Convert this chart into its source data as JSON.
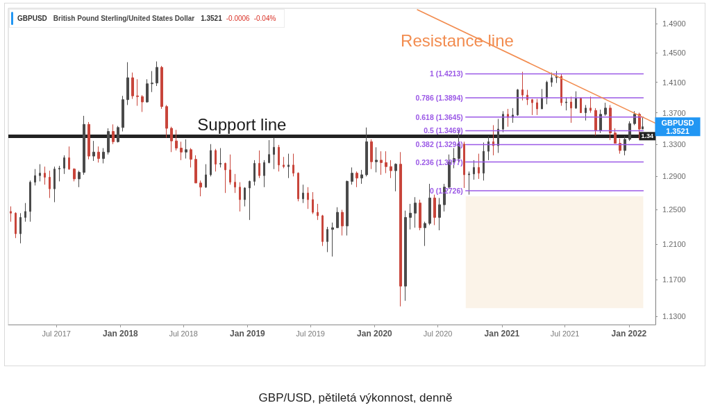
{
  "chart_data": {
    "type": "candlestick",
    "title": "GBPUSD",
    "subtitle": "British Pound Sterling/United States Dollar",
    "annotations": [
      "1.3521",
      "-0.0006",
      "-0.04%",
      {
        "text": "Support line",
        "x": "2018-12-16",
        "y": 1.34
      },
      "GBPUSD\n1.3521",
      "GBP/USD, pětiletá výkonnost, denně"
    ],
    "x": [
      "2017-02-20",
      "2017-03-06",
      "2017-03-20",
      "2017-04-03",
      "2017-04-17",
      "2017-05-01",
      "2017-05-15",
      "2017-05-29",
      "2017-06-12",
      "2017-06-26",
      "2017-07-10",
      "2017-07-24",
      "2017-08-07",
      "2017-08-21",
      "2017-09-04",
      "2017-09-18",
      "2017-10-02",
      "2017-10-16",
      "2017-10-30",
      "2017-11-13",
      "2017-11-27",
      "2017-12-11",
      "2017-12-25",
      "2018-01-08",
      "2018-01-22",
      "2018-02-05",
      "2018-02-19",
      "2018-03-05",
      "2018-03-19",
      "2018-04-02",
      "2018-04-16",
      "2018-04-30",
      "2018-05-14",
      "2018-05-28",
      "2018-06-11",
      "2018-06-25",
      "2018-07-09",
      "2018-07-23",
      "2018-08-06",
      "2018-08-20",
      "2018-09-03",
      "2018-09-17",
      "2018-10-01",
      "2018-10-15",
      "2018-10-29",
      "2018-11-12",
      "2018-11-26",
      "2018-12-10",
      "2018-12-24",
      "2019-01-07",
      "2019-01-21",
      "2019-02-04",
      "2019-02-18",
      "2019-03-04",
      "2019-03-18",
      "2019-04-01",
      "2019-04-15",
      "2019-04-29",
      "2019-05-13",
      "2019-05-27",
      "2019-06-10",
      "2019-06-24",
      "2019-07-08",
      "2019-07-22",
      "2019-08-05",
      "2019-08-19",
      "2019-09-02",
      "2019-09-16",
      "2019-09-30",
      "2019-10-14",
      "2019-10-28",
      "2019-11-11",
      "2019-11-25",
      "2019-12-09",
      "2019-12-23",
      "2020-01-06",
      "2020-01-20",
      "2020-02-03",
      "2020-02-17",
      "2020-03-02",
      "2020-03-16",
      "2020-03-30",
      "2020-04-13",
      "2020-04-27",
      "2020-05-11",
      "2020-05-25",
      "2020-06-08",
      "2020-06-22",
      "2020-07-06",
      "2020-07-20",
      "2020-08-03",
      "2020-08-17",
      "2020-08-31",
      "2020-09-14",
      "2020-09-28",
      "2020-10-12",
      "2020-10-26",
      "2020-11-09",
      "2020-11-23",
      "2020-12-07",
      "2020-12-21",
      "2021-01-04",
      "2021-01-18",
      "2021-02-01",
      "2021-02-15",
      "2021-03-01",
      "2021-03-15",
      "2021-03-29",
      "2021-04-12",
      "2021-04-26",
      "2021-05-10",
      "2021-05-24",
      "2021-06-07",
      "2021-06-21",
      "2021-07-05",
      "2021-07-19",
      "2021-08-02",
      "2021-08-16",
      "2021-08-30",
      "2021-09-13",
      "2021-09-27",
      "2021-10-11",
      "2021-10-25",
      "2021-11-08",
      "2021-11-22",
      "2021-12-06",
      "2021-12-20",
      "2022-01-03",
      "2022-01-17",
      "2022-01-31",
      "2022-02-09"
    ],
    "ohlc": [
      [
        1.248,
        1.254,
        1.236,
        1.246
      ],
      [
        1.246,
        1.247,
        1.217,
        1.222
      ],
      [
        1.222,
        1.246,
        1.211,
        1.241
      ],
      [
        1.241,
        1.258,
        1.236,
        1.248
      ],
      [
        1.248,
        1.285,
        1.236,
        1.283
      ],
      [
        1.283,
        1.299,
        1.279,
        1.291
      ],
      [
        1.291,
        1.305,
        1.284,
        1.294
      ],
      [
        1.294,
        1.302,
        1.28,
        1.289
      ],
      [
        1.289,
        1.297,
        1.264,
        1.275
      ],
      [
        1.275,
        1.302,
        1.259,
        1.299
      ],
      [
        1.299,
        1.303,
        1.284,
        1.3
      ],
      [
        1.3,
        1.316,
        1.293,
        1.313
      ],
      [
        1.313,
        1.327,
        1.298,
        1.299
      ],
      [
        1.299,
        1.3,
        1.284,
        1.287
      ],
      [
        1.287,
        1.297,
        1.277,
        1.295
      ],
      [
        1.295,
        1.366,
        1.292,
        1.355
      ],
      [
        1.355,
        1.358,
        1.311,
        1.315
      ],
      [
        1.315,
        1.334,
        1.309,
        1.32
      ],
      [
        1.32,
        1.327,
        1.307,
        1.312
      ],
      [
        1.312,
        1.325,
        1.306,
        1.32
      ],
      [
        1.32,
        1.35,
        1.317,
        1.346
      ],
      [
        1.346,
        1.355,
        1.33,
        1.333
      ],
      [
        1.333,
        1.353,
        1.332,
        1.351
      ],
      [
        1.351,
        1.392,
        1.346,
        1.387
      ],
      [
        1.387,
        1.437,
        1.38,
        1.416
      ],
      [
        1.416,
        1.423,
        1.388,
        1.392
      ],
      [
        1.392,
        1.414,
        1.379,
        1.391
      ],
      [
        1.391,
        1.393,
        1.371,
        1.384
      ],
      [
        1.384,
        1.414,
        1.383,
        1.408
      ],
      [
        1.408,
        1.425,
        1.397,
        1.409
      ],
      [
        1.409,
        1.438,
        1.405,
        1.43
      ],
      [
        1.43,
        1.432,
        1.375,
        1.378
      ],
      [
        1.378,
        1.38,
        1.338,
        1.35
      ],
      [
        1.35,
        1.352,
        1.32,
        1.334
      ],
      [
        1.334,
        1.348,
        1.322,
        1.325
      ],
      [
        1.325,
        1.333,
        1.31,
        1.32
      ],
      [
        1.32,
        1.336,
        1.312,
        1.323
      ],
      [
        1.323,
        1.325,
        1.301,
        1.311
      ],
      [
        1.311,
        1.316,
        1.282,
        1.282
      ],
      [
        1.282,
        1.285,
        1.266,
        1.277
      ],
      [
        1.277,
        1.305,
        1.276,
        1.292
      ],
      [
        1.292,
        1.33,
        1.29,
        1.322
      ],
      [
        1.322,
        1.324,
        1.296,
        1.305
      ],
      [
        1.305,
        1.325,
        1.301,
        1.306
      ],
      [
        1.306,
        1.307,
        1.27,
        1.298
      ],
      [
        1.298,
        1.317,
        1.28,
        1.283
      ],
      [
        1.283,
        1.293,
        1.27,
        1.277
      ],
      [
        1.277,
        1.283,
        1.248,
        1.262
      ],
      [
        1.262,
        1.277,
        1.254,
        1.276
      ],
      [
        1.276,
        1.285,
        1.238,
        1.284
      ],
      [
        1.284,
        1.31,
        1.279,
        1.306
      ],
      [
        1.306,
        1.322,
        1.288,
        1.291
      ],
      [
        1.291,
        1.31,
        1.277,
        1.307
      ],
      [
        1.307,
        1.335,
        1.306,
        1.317
      ],
      [
        1.317,
        1.338,
        1.299,
        1.326
      ],
      [
        1.326,
        1.329,
        1.296,
        1.304
      ],
      [
        1.304,
        1.314,
        1.3,
        1.302
      ],
      [
        1.302,
        1.318,
        1.288,
        1.304
      ],
      [
        1.304,
        1.318,
        1.29,
        1.294
      ],
      [
        1.294,
        1.295,
        1.26,
        1.263
      ],
      [
        1.263,
        1.28,
        1.258,
        1.27
      ],
      [
        1.27,
        1.277,
        1.251,
        1.262
      ],
      [
        1.262,
        1.271,
        1.245,
        1.247
      ],
      [
        1.247,
        1.257,
        1.238,
        1.243
      ],
      [
        1.243,
        1.244,
        1.208,
        1.213
      ],
      [
        1.213,
        1.23,
        1.201,
        1.227
      ],
      [
        1.227,
        1.235,
        1.196,
        1.229
      ],
      [
        1.229,
        1.253,
        1.229,
        1.247
      ],
      [
        1.247,
        1.25,
        1.22,
        1.231
      ],
      [
        1.231,
        1.285,
        1.22,
        1.284
      ],
      [
        1.284,
        1.301,
        1.28,
        1.294
      ],
      [
        1.294,
        1.296,
        1.277,
        1.288
      ],
      [
        1.288,
        1.298,
        1.281,
        1.292
      ],
      [
        1.292,
        1.351,
        1.29,
        1.333
      ],
      [
        1.333,
        1.336,
        1.299,
        1.308
      ],
      [
        1.308,
        1.326,
        1.295,
        1.31
      ],
      [
        1.31,
        1.321,
        1.292,
        1.307
      ],
      [
        1.307,
        1.321,
        1.294,
        1.302
      ],
      [
        1.302,
        1.31,
        1.288,
        1.297
      ],
      [
        1.297,
        1.306,
        1.272,
        1.305
      ],
      [
        1.305,
        1.32,
        1.141,
        1.163
      ],
      [
        1.163,
        1.249,
        1.147,
        1.241
      ],
      [
        1.241,
        1.257,
        1.227,
        1.246
      ],
      [
        1.246,
        1.265,
        1.229,
        1.258
      ],
      [
        1.258,
        1.262,
        1.226,
        1.229
      ],
      [
        1.229,
        1.236,
        1.208,
        1.234
      ],
      [
        1.234,
        1.281,
        1.232,
        1.264
      ],
      [
        1.264,
        1.268,
        1.232,
        1.241
      ],
      [
        1.241,
        1.264,
        1.226,
        1.256
      ],
      [
        1.256,
        1.281,
        1.248,
        1.277
      ],
      [
        1.277,
        1.317,
        1.275,
        1.308
      ],
      [
        1.308,
        1.325,
        1.3,
        1.312
      ],
      [
        1.312,
        1.348,
        1.307,
        1.33
      ],
      [
        1.33,
        1.333,
        1.276,
        1.292
      ],
      [
        1.292,
        1.296,
        1.268,
        1.293
      ],
      [
        1.293,
        1.31,
        1.286,
        1.301
      ],
      [
        1.301,
        1.318,
        1.287,
        1.294
      ],
      [
        1.294,
        1.332,
        1.285,
        1.321
      ],
      [
        1.321,
        1.34,
        1.31,
        1.333
      ],
      [
        1.333,
        1.354,
        1.316,
        1.328
      ],
      [
        1.328,
        1.362,
        1.319,
        1.349
      ],
      [
        1.349,
        1.372,
        1.345,
        1.368
      ],
      [
        1.368,
        1.375,
        1.352,
        1.364
      ],
      [
        1.364,
        1.376,
        1.357,
        1.367
      ],
      [
        1.367,
        1.401,
        1.366,
        1.4
      ],
      [
        1.4,
        1.424,
        1.386,
        1.393
      ],
      [
        1.393,
        1.4,
        1.38,
        1.387
      ],
      [
        1.387,
        1.388,
        1.367,
        1.383
      ],
      [
        1.383,
        1.388,
        1.367,
        1.375
      ],
      [
        1.375,
        1.401,
        1.375,
        1.389
      ],
      [
        1.389,
        1.412,
        1.381,
        1.41
      ],
      [
        1.41,
        1.423,
        1.404,
        1.416
      ],
      [
        1.416,
        1.425,
        1.409,
        1.418
      ],
      [
        1.418,
        1.421,
        1.379,
        1.383
      ],
      [
        1.383,
        1.39,
        1.373,
        1.384
      ],
      [
        1.384,
        1.391,
        1.357,
        1.376
      ],
      [
        1.376,
        1.398,
        1.375,
        1.389
      ],
      [
        1.389,
        1.39,
        1.37,
        1.37
      ],
      [
        1.37,
        1.38,
        1.36,
        1.376
      ],
      [
        1.376,
        1.391,
        1.37,
        1.373
      ],
      [
        1.373,
        1.376,
        1.341,
        1.347
      ],
      [
        1.347,
        1.374,
        1.344,
        1.368
      ],
      [
        1.368,
        1.383,
        1.366,
        1.376
      ],
      [
        1.376,
        1.38,
        1.335,
        1.344
      ],
      [
        1.344,
        1.35,
        1.331,
        1.331
      ],
      [
        1.331,
        1.337,
        1.318,
        1.322
      ],
      [
        1.322,
        1.34,
        1.316,
        1.336
      ],
      [
        1.336,
        1.359,
        1.334,
        1.356
      ],
      [
        1.356,
        1.372,
        1.354,
        1.368
      ],
      [
        1.368,
        1.37,
        1.336,
        1.349
      ],
      [
        1.349,
        1.364,
        1.349,
        1.352
      ]
    ],
    "colors": [
      "#c8453b",
      "#c8453b",
      "#4a4a4a",
      "#4a4a4a",
      "#4a4a4a",
      "#4a4a4a",
      "#4a4a4a",
      "#c8453b",
      "#c8453b",
      "#4a4a4a",
      "#4a4a4a",
      "#4a4a4a",
      "#c8453b",
      "#c8453b",
      "#4a4a4a",
      "#4a4a4a",
      "#c8453b",
      "#4a4a4a",
      "#c8453b",
      "#4a4a4a",
      "#4a4a4a",
      "#c8453b",
      "#4a4a4a",
      "#4a4a4a",
      "#4a4a4a",
      "#c8453b",
      "#c8453b",
      "#c8453b",
      "#4a4a4a",
      "#4a4a4a",
      "#4a4a4a",
      "#c8453b",
      "#c8453b",
      "#c8453b",
      "#c8453b",
      "#c8453b",
      "#4a4a4a",
      "#c8453b",
      "#c8453b",
      "#c8453b",
      "#4a4a4a",
      "#4a4a4a",
      "#c8453b",
      "#4a4a4a",
      "#c8453b",
      "#c8453b",
      "#c8453b",
      "#c8453b",
      "#4a4a4a",
      "#4a4a4a",
      "#4a4a4a",
      "#c8453b",
      "#4a4a4a",
      "#4a4a4a",
      "#4a4a4a",
      "#c8453b",
      "#c8453b",
      "#4a4a4a",
      "#c8453b",
      "#c8453b",
      "#4a4a4a",
      "#c8453b",
      "#c8453b",
      "#c8453b",
      "#c8453b",
      "#4a4a4a",
      "#4a4a4a",
      "#4a4a4a",
      "#c8453b",
      "#4a4a4a",
      "#4a4a4a",
      "#c8453b",
      "#4a4a4a",
      "#4a4a4a",
      "#c8453b",
      "#4a4a4a",
      "#c8453b",
      "#c8453b",
      "#c8453b",
      "#4a4a4a",
      "#c8453b",
      "#4a4a4a",
      "#4a4a4a",
      "#4a4a4a",
      "#c8453b",
      "#4a4a4a",
      "#4a4a4a",
      "#c8453b",
      "#4a4a4a",
      "#4a4a4a",
      "#4a4a4a",
      "#4a4a4a",
      "#4a4a4a",
      "#c8453b",
      "#4a4a4a",
      "#4a4a4a",
      "#c8453b",
      "#4a4a4a",
      "#4a4a4a",
      "#c8453b",
      "#4a4a4a",
      "#4a4a4a",
      "#c8453b",
      "#4a4a4a",
      "#4a4a4a",
      "#c8453b",
      "#c8453b",
      "#c8453b",
      "#c8453b",
      "#4a4a4a",
      "#4a4a4a",
      "#4a4a4a",
      "#4a4a4a",
      "#c8453b",
      "#4a4a4a",
      "#c8453b",
      "#4a4a4a",
      "#c8453b",
      "#4a4a4a",
      "#c8453b",
      "#c8453b",
      "#4a4a4a",
      "#4a4a4a",
      "#c8453b",
      "#c8453b",
      "#c8453b",
      "#4a4a4a",
      "#4a4a4a",
      "#4a4a4a",
      "#c8453b",
      "#4a4a4a"
    ],
    "xlim": [
      "2017-02-13",
      "2022-03-18"
    ],
    "xticks": [
      {
        "value": "2017-07-01",
        "label": "Jul 2017"
      },
      {
        "value": "2018-01-01",
        "label": "Jan 2018"
      },
      {
        "value": "2018-07-01",
        "label": "Jul 2018"
      },
      {
        "value": "2019-01-01",
        "label": "Jan 2019"
      },
      {
        "value": "2019-07-01",
        "label": "Jul 2019"
      },
      {
        "value": "2020-01-01",
        "label": "Jan 2020"
      },
      {
        "value": "2020-07-01",
        "label": "Jul 2020"
      },
      {
        "value": "2021-01-01",
        "label": "Jan 2021"
      },
      {
        "value": "2021-07-01",
        "label": "Jul 2021"
      },
      {
        "value": "2022-01-01",
        "label": "Jan 2022"
      }
    ],
    "ylim": [
      1.1215,
      1.512
    ],
    "yticks": [
      {
        "value": 1.13,
        "label": "1.1300"
      },
      {
        "value": 1.17,
        "label": "1.1700"
      },
      {
        "value": 1.21,
        "label": "1.2100"
      },
      {
        "value": 1.25,
        "label": "1.2500"
      },
      {
        "value": 1.29,
        "label": "1.2900"
      },
      {
        "value": 1.33,
        "label": "1.3300"
      },
      {
        "value": 1.37,
        "label": "1.3700"
      },
      {
        "value": 1.41,
        "label": "1.4100"
      },
      {
        "value": 1.45,
        "label": "1.4500"
      },
      {
        "value": 1.49,
        "label": "1.4900"
      }
    ],
    "log": true,
    "ref_lines": [
      {
        "axis": "y",
        "value": 1.34,
        "label": "1.34",
        "color": "#222222"
      }
    ],
    "series": [
      {
        "type": "line",
        "color": "#fbf3e8",
        "x": [
          "2020-09-19",
          "2022-02-11"
        ],
        "values": [
          null,
          null
        ],
        "lower": [
          1.139,
          1.139
        ],
        "upper": [
          1.266,
          1.266
        ]
      },
      {
        "type": "line",
        "name": "1 (1.4213)",
        "color": "#9b59e6",
        "x": [
          "2020-09-19",
          "2022-02-11"
        ],
        "values": [
          1.4213,
          1.4213
        ]
      },
      {
        "type": "line",
        "name": "0.786 (1.3894)",
        "color": "#9b59e6",
        "x": [
          "2020-09-19",
          "2022-02-11"
        ],
        "values": [
          1.3894,
          1.3894
        ]
      },
      {
        "type": "line",
        "name": "0.618 (1.3645)",
        "color": "#9b59e6",
        "x": [
          "2020-09-19",
          "2022-02-11"
        ],
        "values": [
          1.3645,
          1.3645
        ]
      },
      {
        "type": "line",
        "name": "0.5 (1.3469)",
        "color": "#9b59e6",
        "x": [
          "2020-09-19",
          "2022-02-11"
        ],
        "values": [
          1.3469,
          1.3469
        ]
      },
      {
        "type": "line",
        "name": "0.382 (1.3294)",
        "color": "#9b59e6",
        "x": [
          "2020-09-19",
          "2022-02-11"
        ],
        "values": [
          1.3294,
          1.3294
        ]
      },
      {
        "type": "line",
        "name": "0.236 (1.3077)",
        "color": "#9b59e6",
        "x": [
          "2020-09-19",
          "2022-02-11"
        ],
        "values": [
          1.3077,
          1.3077
        ]
      },
      {
        "type": "line",
        "name": "0 (1.2726)",
        "color": "#9b59e6",
        "x": [
          "2020-09-19",
          "2022-02-11"
        ],
        "values": [
          1.2726,
          1.2726
        ]
      },
      {
        "type": "line",
        "name": "Resistance line",
        "color": "#f28c4f",
        "x": [
          "2020-05-03",
          "2022-03-18"
        ],
        "values": [
          1.51,
          1.3565
        ]
      }
    ]
  }
}
